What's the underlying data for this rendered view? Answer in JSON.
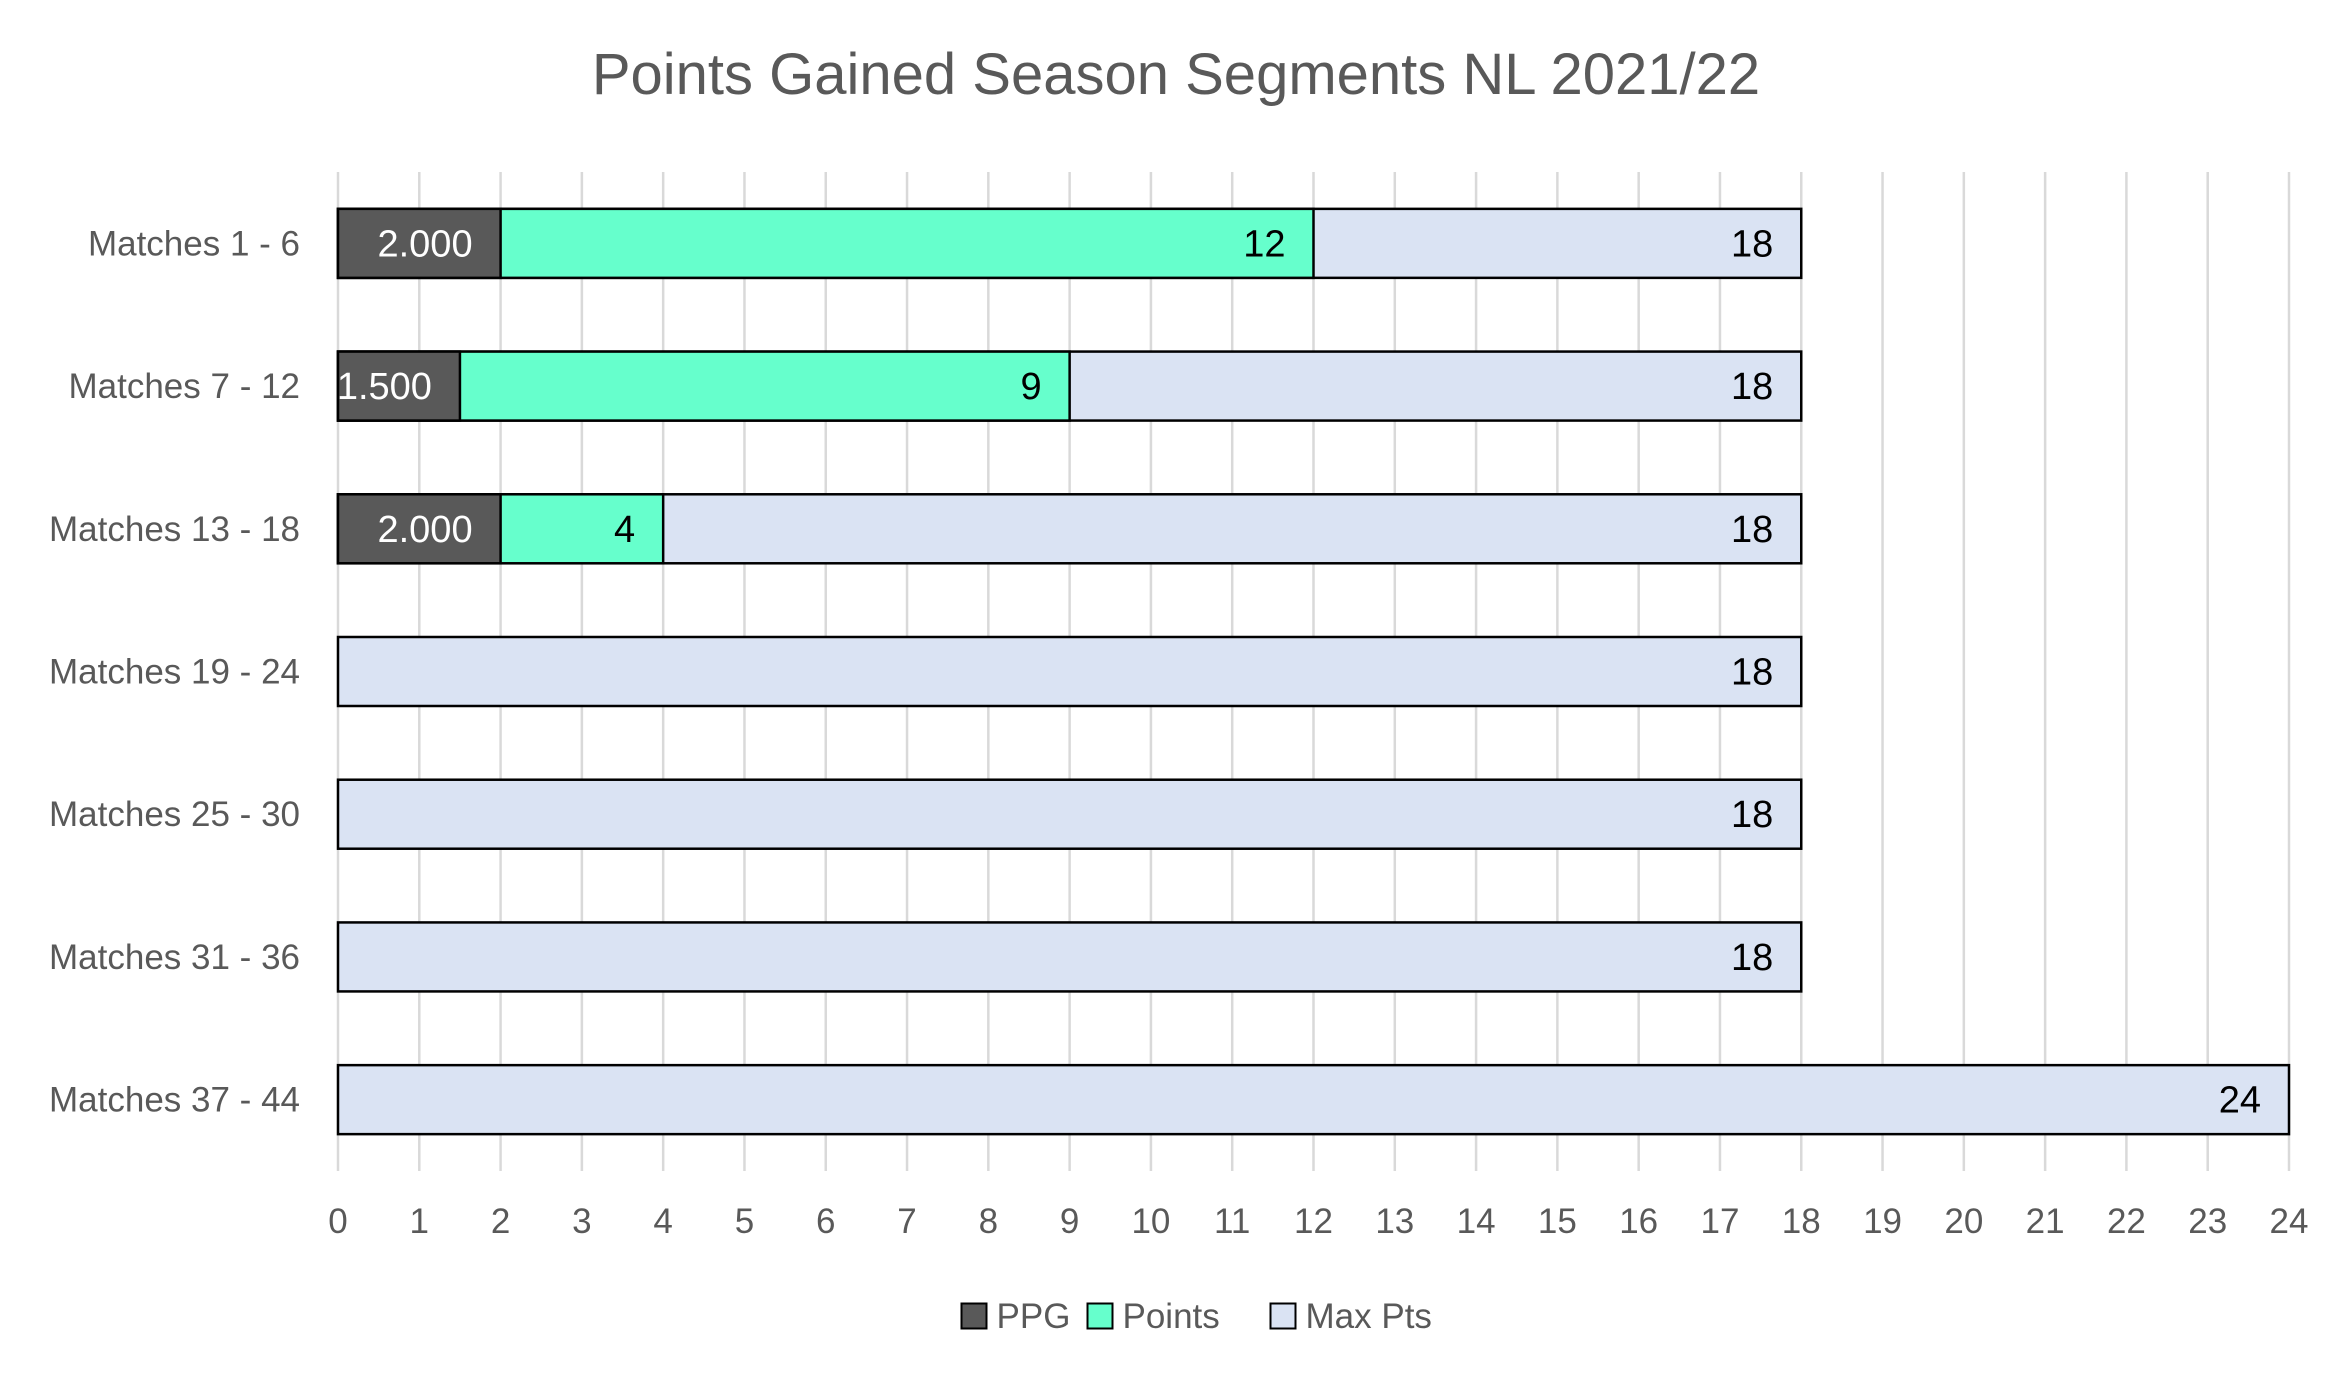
{
  "chart_data": {
    "type": "bar",
    "orientation": "horizontal",
    "title": "Points Gained Season Segments NL 2021/22",
    "categories": [
      "Matches 1 - 6",
      "Matches 7 - 12",
      "Matches 13 - 18",
      "Matches 19 - 24",
      "Matches 25 - 30",
      "Matches 31 - 36",
      "Matches 37 - 44"
    ],
    "series": [
      {
        "name": "Max Pts",
        "color": "#DAE3F3",
        "label_color": "#000000",
        "values": [
          18,
          18,
          18,
          18,
          18,
          18,
          24
        ],
        "labels": [
          "18",
          "18",
          "18",
          "18",
          "18",
          "18",
          "24"
        ]
      },
      {
        "name": "Points",
        "color": "#66FFCC",
        "label_color": "#000000",
        "values": [
          12,
          9,
          4,
          null,
          null,
          null,
          null
        ],
        "labels": [
          "12",
          "9",
          "4",
          "",
          "",
          "",
          ""
        ]
      },
      {
        "name": "PPG",
        "color": "#595959",
        "label_color": "#FFFFFF",
        "values": [
          2.0,
          1.5,
          2.0,
          null,
          null,
          null,
          null
        ],
        "labels": [
          "2.000",
          "1.500",
          "2.000",
          "",
          "",
          "",
          ""
        ]
      }
    ],
    "legend_order": [
      "PPG",
      "Points",
      "Max Pts"
    ],
    "xlim": [
      0,
      24
    ],
    "x_ticks": [
      "0",
      "1",
      "2",
      "3",
      "4",
      "5",
      "6",
      "7",
      "8",
      "9",
      "10",
      "11",
      "12",
      "13",
      "14",
      "15",
      "16",
      "17",
      "18",
      "19",
      "20",
      "21",
      "22",
      "23",
      "24"
    ],
    "grid": true,
    "legend_position": "bottom-center"
  }
}
